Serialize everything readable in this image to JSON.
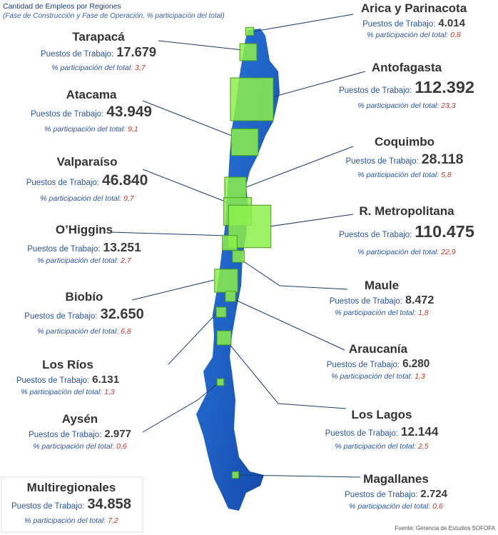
{
  "header": {
    "title": "Cantidad de Empleos por Regiones",
    "subtitle": "(Fase de Construcción y Fase de Operación, % participación del total)"
  },
  "jobs_label": "Puestos de Trabajo:",
  "share_label": "% participación del total:",
  "regions": [
    {
      "name": "Arica y Parinacota",
      "jobs": "4.014",
      "share": "0,8"
    },
    {
      "name": "Tarapacá",
      "jobs": "17.679",
      "share": "3,7"
    },
    {
      "name": "Antofagasta",
      "jobs": "112.392",
      "share": "23,3"
    },
    {
      "name": "Atacama",
      "jobs": "43.949",
      "share": "9,1"
    },
    {
      "name": "Coquimbo",
      "jobs": "28.118",
      "share": "5,8"
    },
    {
      "name": "Valparaíso",
      "jobs": "46.840",
      "share": "9,7"
    },
    {
      "name": "R. Metropolitana",
      "jobs": "110.475",
      "share": "22,9"
    },
    {
      "name": "O’Higgins",
      "jobs": "13.251",
      "share": "2,7"
    },
    {
      "name": "Maule",
      "jobs": "8.472",
      "share": "1,8"
    },
    {
      "name": "Biobío",
      "jobs": "32.650",
      "share": "6,8"
    },
    {
      "name": "Araucanía",
      "jobs": "6.280",
      "share": "1,3"
    },
    {
      "name": "Los Ríos",
      "jobs": "6.131",
      "share": "1,3"
    },
    {
      "name": "Los Lagos",
      "jobs": "12.144",
      "share": "2,5"
    },
    {
      "name": "Aysén",
      "jobs": "2.977",
      "share": "0,6"
    },
    {
      "name": "Magallanes",
      "jobs": "2.724",
      "share": "0,6"
    },
    {
      "name": "Multiregionales",
      "jobs": "34.858",
      "share": "7,2"
    }
  ],
  "source": "Fuente: Gerencia de Estudios SOFOFA"
}
